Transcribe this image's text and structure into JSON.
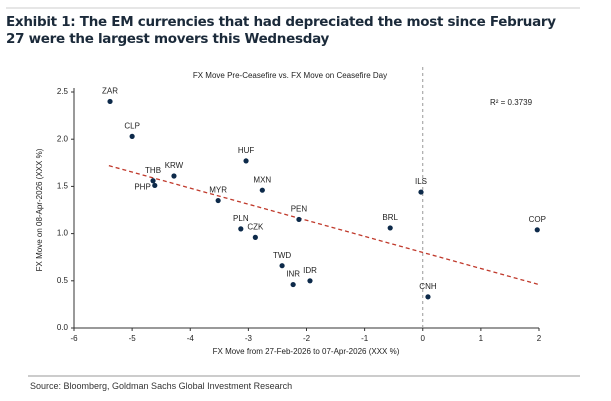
{
  "header": {
    "title": "Exhibit 1: The EM currencies that had depreciated the most since February 27 were the largest movers this Wednesday"
  },
  "chart_data": {
    "type": "scatter",
    "title": "FX Move Pre-Ceasefire vs. FX Move on Ceasefire Day",
    "x_label": "FX Move from 27-Feb-2026 to 07-Apr-2026 (XXX %)",
    "y_label": "FX Move on 08-Apr-2026 (XXX %)",
    "annotation": "R² = 0.3739",
    "point_labels": [
      "ZAR",
      "CLP",
      "THB",
      "PHP",
      "KRW",
      "HUF",
      "MXN",
      "MYR",
      "PEN",
      "PLN",
      "CZK",
      "TWD",
      "IDR",
      "INR",
      "BRL",
      "ILS",
      "CNH",
      "COP"
    ],
    "x": [
      -5.38,
      -5.0,
      -4.64,
      -4.61,
      -4.28,
      -3.04,
      -2.76,
      -3.52,
      -2.13,
      -3.13,
      -2.88,
      -2.42,
      -1.94,
      -2.23,
      -0.56,
      -0.03,
      0.09,
      1.97
    ],
    "values": [
      2.4,
      2.03,
      1.56,
      1.51,
      1.61,
      1.77,
      1.46,
      1.35,
      1.15,
      1.05,
      0.96,
      0.66,
      0.5,
      0.46,
      1.06,
      1.44,
      0.33,
      1.04
    ],
    "color": "#0d2a4a",
    "trendline": {
      "x": [
        -5.4,
        2
      ],
      "y": [
        1.72,
        0.46
      ],
      "color": "#c0392b"
    },
    "vline": 0,
    "xlim": [
      -6,
      2
    ],
    "xticks": [
      -6,
      -5,
      -4,
      -3,
      -2,
      -1,
      0,
      1,
      2
    ],
    "ylim": [
      0,
      2.5
    ],
    "yticks": [
      {
        "value": 0,
        "label": "0.0"
      },
      0.5,
      {
        "value": 1,
        "label": "1.0"
      },
      1.5,
      {
        "value": 2,
        "label": "2.0"
      },
      2.5
    ]
  },
  "footer": {
    "source": "Source: Bloomberg, Goldman Sachs Global Investment Research"
  }
}
